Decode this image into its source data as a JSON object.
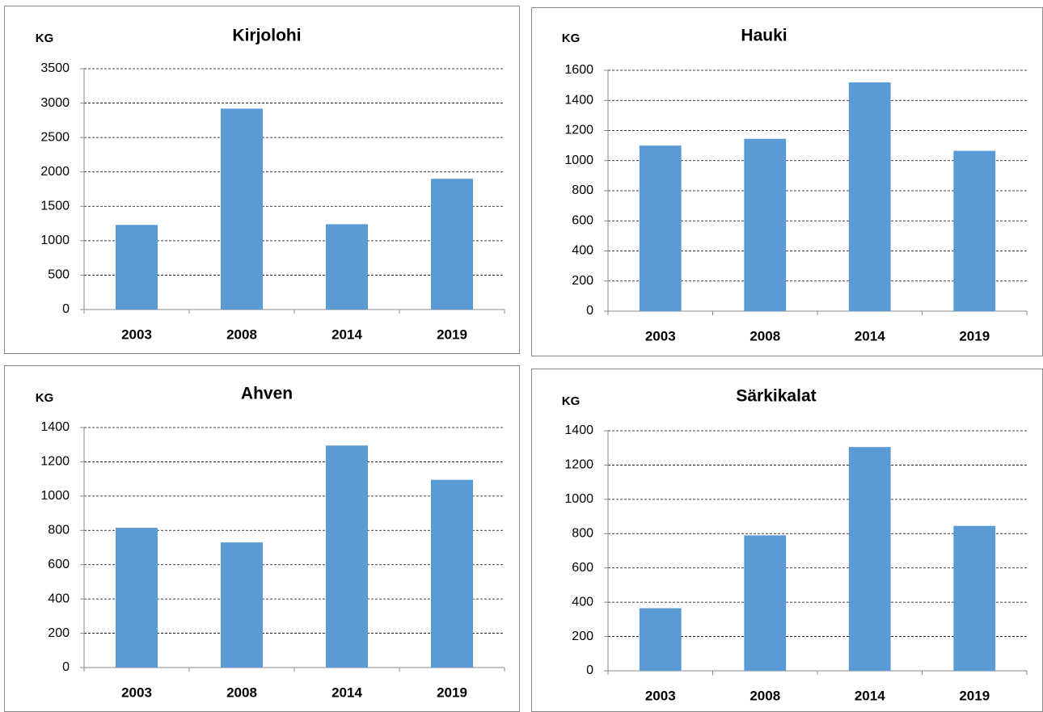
{
  "chart_data": [
    {
      "type": "bar",
      "title": "Kirjolohi",
      "y_label": "KG",
      "categories": [
        "2003",
        "2008",
        "2014",
        "2019"
      ],
      "values": [
        1230,
        2920,
        1240,
        1900
      ],
      "color": "#5b9bd5",
      "ylim": [
        0,
        3500
      ],
      "yticks": [
        0,
        500,
        1000,
        1500,
        2000,
        2500,
        3000,
        3500
      ],
      "grid": true
    },
    {
      "type": "bar",
      "title": "Hauki",
      "y_label": "KG",
      "categories": [
        "2003",
        "2008",
        "2014",
        "2019"
      ],
      "values": [
        1100,
        1145,
        1520,
        1065
      ],
      "color": "#5b9bd5",
      "ylim": [
        0,
        1600
      ],
      "yticks": [
        0,
        200,
        400,
        600,
        800,
        1000,
        1200,
        1400,
        1600
      ],
      "grid": true
    },
    {
      "type": "bar",
      "title": "Ahven",
      "y_label": "KG",
      "categories": [
        "2003",
        "2008",
        "2014",
        "2019"
      ],
      "values": [
        815,
        730,
        1295,
        1095
      ],
      "color": "#5b9bd5",
      "ylim": [
        0,
        1400
      ],
      "yticks": [
        0,
        200,
        400,
        600,
        800,
        1000,
        1200,
        1400
      ],
      "grid": true
    },
    {
      "type": "bar",
      "title": "Särkikalat",
      "y_label": "KG",
      "categories": [
        "2003",
        "2008",
        "2014",
        "2019"
      ],
      "values": [
        365,
        790,
        1305,
        845
      ],
      "color": "#5b9bd5",
      "ylim": [
        0,
        1400
      ],
      "yticks": [
        0,
        200,
        400,
        600,
        800,
        1000,
        1200,
        1400
      ],
      "grid": true
    }
  ]
}
